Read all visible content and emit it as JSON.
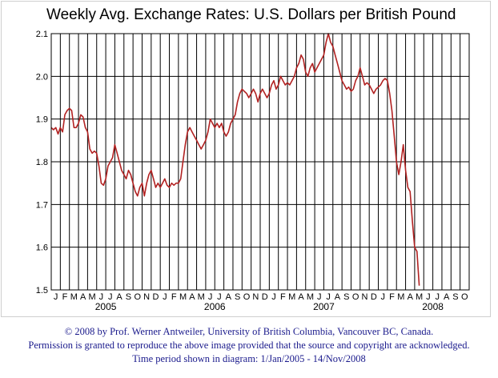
{
  "chart_data": {
    "type": "line",
    "title": "Weekly Avg. Exchange Rates: U.S. Dollars per British Pound",
    "xlabel": "",
    "ylabel": "",
    "ylim": [
      1.5,
      2.1
    ],
    "yticks": [
      "1.5",
      "1.6",
      "1.7",
      "1.8",
      "1.9",
      "2.0",
      "2.1"
    ],
    "grid": true,
    "month_labels": [
      "J",
      "F",
      "M",
      "A",
      "M",
      "J",
      "J",
      "A",
      "S",
      "O",
      "N",
      "D",
      "J",
      "F",
      "M",
      "A",
      "M",
      "J",
      "J",
      "A",
      "S",
      "O",
      "N",
      "D",
      "J",
      "F",
      "M",
      "A",
      "M",
      "J",
      "J",
      "A",
      "S",
      "O",
      "N",
      "D",
      "J",
      "F",
      "M",
      "A",
      "M",
      "J",
      "J",
      "A",
      "S",
      "O"
    ],
    "year_labels": [
      "2005",
      "2006",
      "2007",
      "2008"
    ],
    "line_color": "#b22222",
    "series": [
      {
        "values": [
          [
            0,
            1.88
          ],
          [
            0.25,
            1.875
          ],
          [
            0.5,
            1.88
          ],
          [
            0.75,
            1.865
          ],
          [
            1,
            1.88
          ],
          [
            1.25,
            1.87
          ],
          [
            1.5,
            1.91
          ],
          [
            1.75,
            1.92
          ],
          [
            2,
            1.925
          ],
          [
            2.25,
            1.92
          ],
          [
            2.5,
            1.88
          ],
          [
            2.75,
            1.88
          ],
          [
            3,
            1.89
          ],
          [
            3.25,
            1.91
          ],
          [
            3.5,
            1.905
          ],
          [
            3.75,
            1.88
          ],
          [
            4,
            1.87
          ],
          [
            4.25,
            1.83
          ],
          [
            4.5,
            1.82
          ],
          [
            4.75,
            1.825
          ],
          [
            5,
            1.82
          ],
          [
            5.25,
            1.79
          ],
          [
            5.5,
            1.75
          ],
          [
            5.75,
            1.745
          ],
          [
            6,
            1.76
          ],
          [
            6.25,
            1.79
          ],
          [
            6.5,
            1.8
          ],
          [
            6.75,
            1.81
          ],
          [
            7,
            1.84
          ],
          [
            7.25,
            1.82
          ],
          [
            7.5,
            1.8
          ],
          [
            7.75,
            1.78
          ],
          [
            8,
            1.77
          ],
          [
            8.25,
            1.76
          ],
          [
            8.5,
            1.78
          ],
          [
            8.75,
            1.77
          ],
          [
            9,
            1.75
          ],
          [
            9.25,
            1.73
          ],
          [
            9.5,
            1.72
          ],
          [
            9.75,
            1.74
          ],
          [
            10,
            1.75
          ],
          [
            10.25,
            1.72
          ],
          [
            10.5,
            1.75
          ],
          [
            10.75,
            1.77
          ],
          [
            11,
            1.78
          ],
          [
            11.25,
            1.76
          ],
          [
            11.5,
            1.74
          ],
          [
            11.75,
            1.75
          ],
          [
            12,
            1.74
          ],
          [
            12.25,
            1.75
          ],
          [
            12.5,
            1.76
          ],
          [
            12.75,
            1.745
          ],
          [
            13,
            1.74
          ],
          [
            13.25,
            1.75
          ],
          [
            13.5,
            1.745
          ],
          [
            13.75,
            1.75
          ],
          [
            14,
            1.75
          ],
          [
            14.25,
            1.76
          ],
          [
            14.5,
            1.8
          ],
          [
            14.75,
            1.84
          ],
          [
            15,
            1.87
          ],
          [
            15.25,
            1.88
          ],
          [
            15.5,
            1.87
          ],
          [
            15.75,
            1.86
          ],
          [
            16,
            1.85
          ],
          [
            16.25,
            1.84
          ],
          [
            16.5,
            1.83
          ],
          [
            16.75,
            1.84
          ],
          [
            17,
            1.85
          ],
          [
            17.25,
            1.87
          ],
          [
            17.5,
            1.9
          ],
          [
            17.75,
            1.89
          ],
          [
            18,
            1.88
          ],
          [
            18.25,
            1.89
          ],
          [
            18.5,
            1.88
          ],
          [
            18.75,
            1.89
          ],
          [
            19,
            1.87
          ],
          [
            19.25,
            1.86
          ],
          [
            19.5,
            1.87
          ],
          [
            19.75,
            1.89
          ],
          [
            20,
            1.9
          ],
          [
            20.25,
            1.91
          ],
          [
            20.5,
            1.94
          ],
          [
            20.75,
            1.96
          ],
          [
            21,
            1.97
          ],
          [
            21.25,
            1.965
          ],
          [
            21.5,
            1.96
          ],
          [
            21.75,
            1.95
          ],
          [
            22,
            1.96
          ],
          [
            22.25,
            1.97
          ],
          [
            22.5,
            1.96
          ],
          [
            22.75,
            1.94
          ],
          [
            23,
            1.96
          ],
          [
            23.25,
            1.97
          ],
          [
            23.5,
            1.96
          ],
          [
            23.75,
            1.95
          ],
          [
            24,
            1.96
          ],
          [
            24.25,
            1.98
          ],
          [
            24.5,
            1.99
          ],
          [
            24.75,
            1.97
          ],
          [
            25,
            1.98
          ],
          [
            25.25,
            2.0
          ],
          [
            25.5,
            1.99
          ],
          [
            25.75,
            1.98
          ],
          [
            26,
            1.985
          ],
          [
            26.25,
            1.98
          ],
          [
            26.5,
            1.99
          ],
          [
            26.75,
            2.0
          ],
          [
            27,
            2.02
          ],
          [
            27.25,
            2.03
          ],
          [
            27.5,
            2.05
          ],
          [
            27.75,
            2.04
          ],
          [
            28,
            2.01
          ],
          [
            28.25,
            2.0
          ],
          [
            28.5,
            2.02
          ],
          [
            28.75,
            2.03
          ],
          [
            29,
            2.01
          ],
          [
            29.25,
            2.02
          ],
          [
            29.5,
            2.03
          ],
          [
            29.75,
            2.04
          ],
          [
            30,
            2.05
          ],
          [
            30.25,
            2.08
          ],
          [
            30.5,
            2.1
          ],
          [
            30.75,
            2.08
          ],
          [
            31,
            2.07
          ],
          [
            31.25,
            2.05
          ],
          [
            31.5,
            2.03
          ],
          [
            31.75,
            2.01
          ],
          [
            32,
            1.99
          ],
          [
            32.25,
            1.98
          ],
          [
            32.5,
            1.97
          ],
          [
            32.75,
            1.975
          ],
          [
            33,
            1.965
          ],
          [
            33.25,
            1.97
          ],
          [
            33.5,
            1.99
          ],
          [
            33.75,
            2.0
          ],
          [
            34,
            2.02
          ],
          [
            34.25,
            2.0
          ],
          [
            34.5,
            1.98
          ],
          [
            34.75,
            1.985
          ],
          [
            35,
            1.98
          ],
          [
            35.25,
            1.97
          ],
          [
            35.5,
            1.96
          ],
          [
            35.75,
            1.97
          ],
          [
            36,
            1.975
          ],
          [
            36.25,
            1.98
          ],
          [
            36.5,
            1.99
          ],
          [
            36.75,
            1.995
          ],
          [
            37,
            1.99
          ],
          [
            37.25,
            1.96
          ],
          [
            37.5,
            1.92
          ],
          [
            37.75,
            1.86
          ],
          [
            38,
            1.8
          ],
          [
            38.25,
            1.77
          ],
          [
            38.5,
            1.8
          ],
          [
            38.75,
            1.84
          ],
          [
            39,
            1.78
          ],
          [
            39.25,
            1.74
          ],
          [
            39.5,
            1.73
          ],
          [
            39.75,
            1.66
          ],
          [
            40,
            1.6
          ],
          [
            40.25,
            1.59
          ],
          [
            40.5,
            1.51
          ]
        ]
      }
    ]
  },
  "footer": {
    "line1": "© 2008 by Prof. Werner Antweiler, University of British Columbia, Vancouver BC, Canada.",
    "line2": "Permission is granted to reproduce the above image provided that the source and copyright are acknowledged.",
    "line3": "Time period shown in diagram: 1/Jan/2005 - 14/Nov/2008"
  }
}
